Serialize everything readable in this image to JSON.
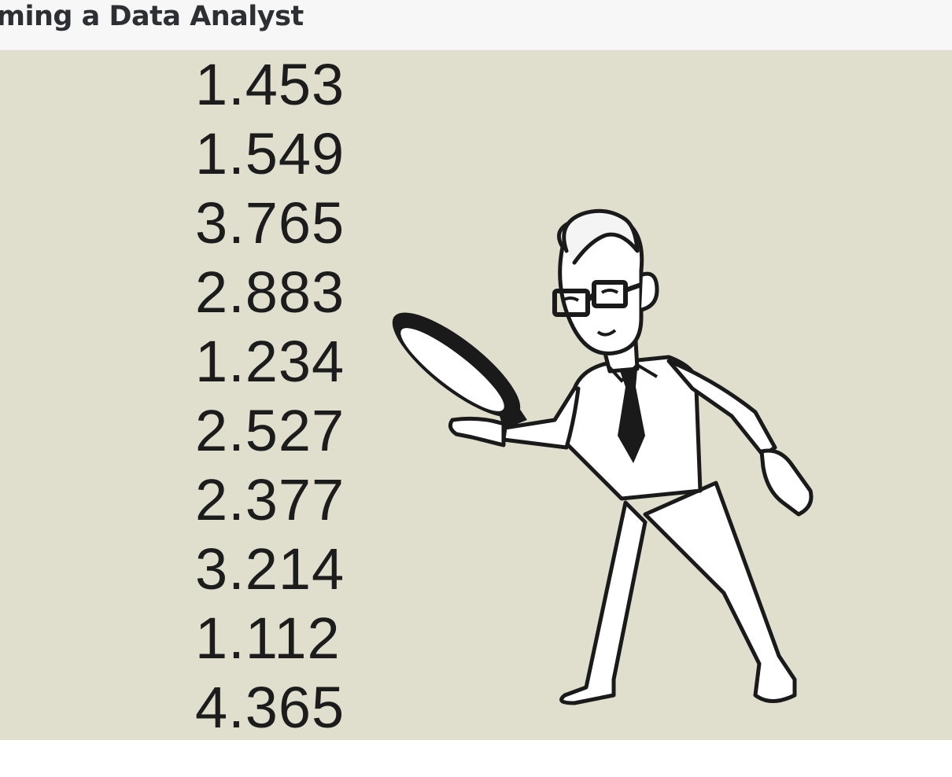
{
  "header": {
    "title": "oming a Data Analyst"
  },
  "video": {
    "numbers": [
      "1.453",
      "1.549",
      "3.765",
      "2.883",
      "1.234",
      "2.527",
      "2.377",
      "3.214",
      "1.112",
      "4.365"
    ],
    "illustration": "analyst-with-magnifying-glass"
  }
}
